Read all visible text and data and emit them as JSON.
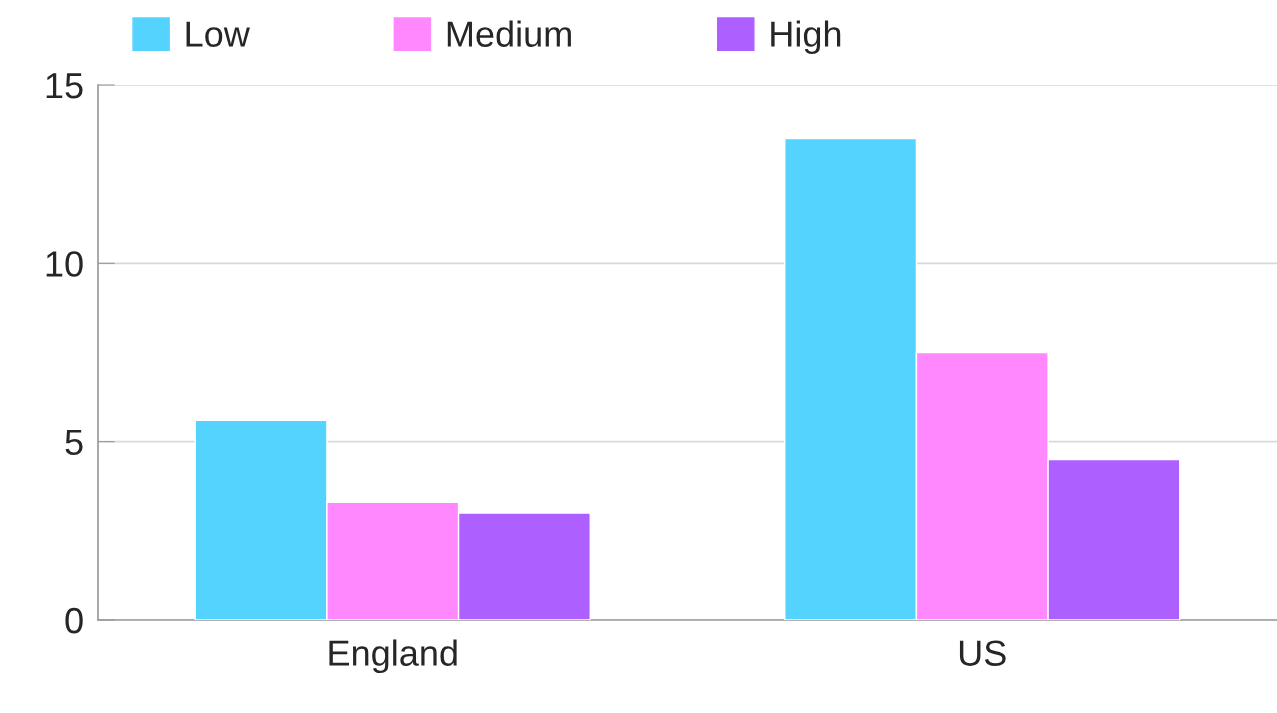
{
  "chart_data": {
    "type": "bar",
    "categories": [
      "England",
      "US"
    ],
    "series": [
      {
        "name": "Low",
        "color": "#55d3ff",
        "values": [
          5.6,
          13.5
        ]
      },
      {
        "name": "Medium",
        "color": "#ff88ff",
        "values": [
          3.3,
          7.5
        ]
      },
      {
        "name": "High",
        "color": "#ae5fff",
        "values": [
          3.0,
          4.5
        ]
      }
    ],
    "ylim": [
      0,
      15
    ],
    "yticks": [
      0,
      5,
      10,
      15
    ],
    "grid": "y",
    "legend": "top left"
  }
}
